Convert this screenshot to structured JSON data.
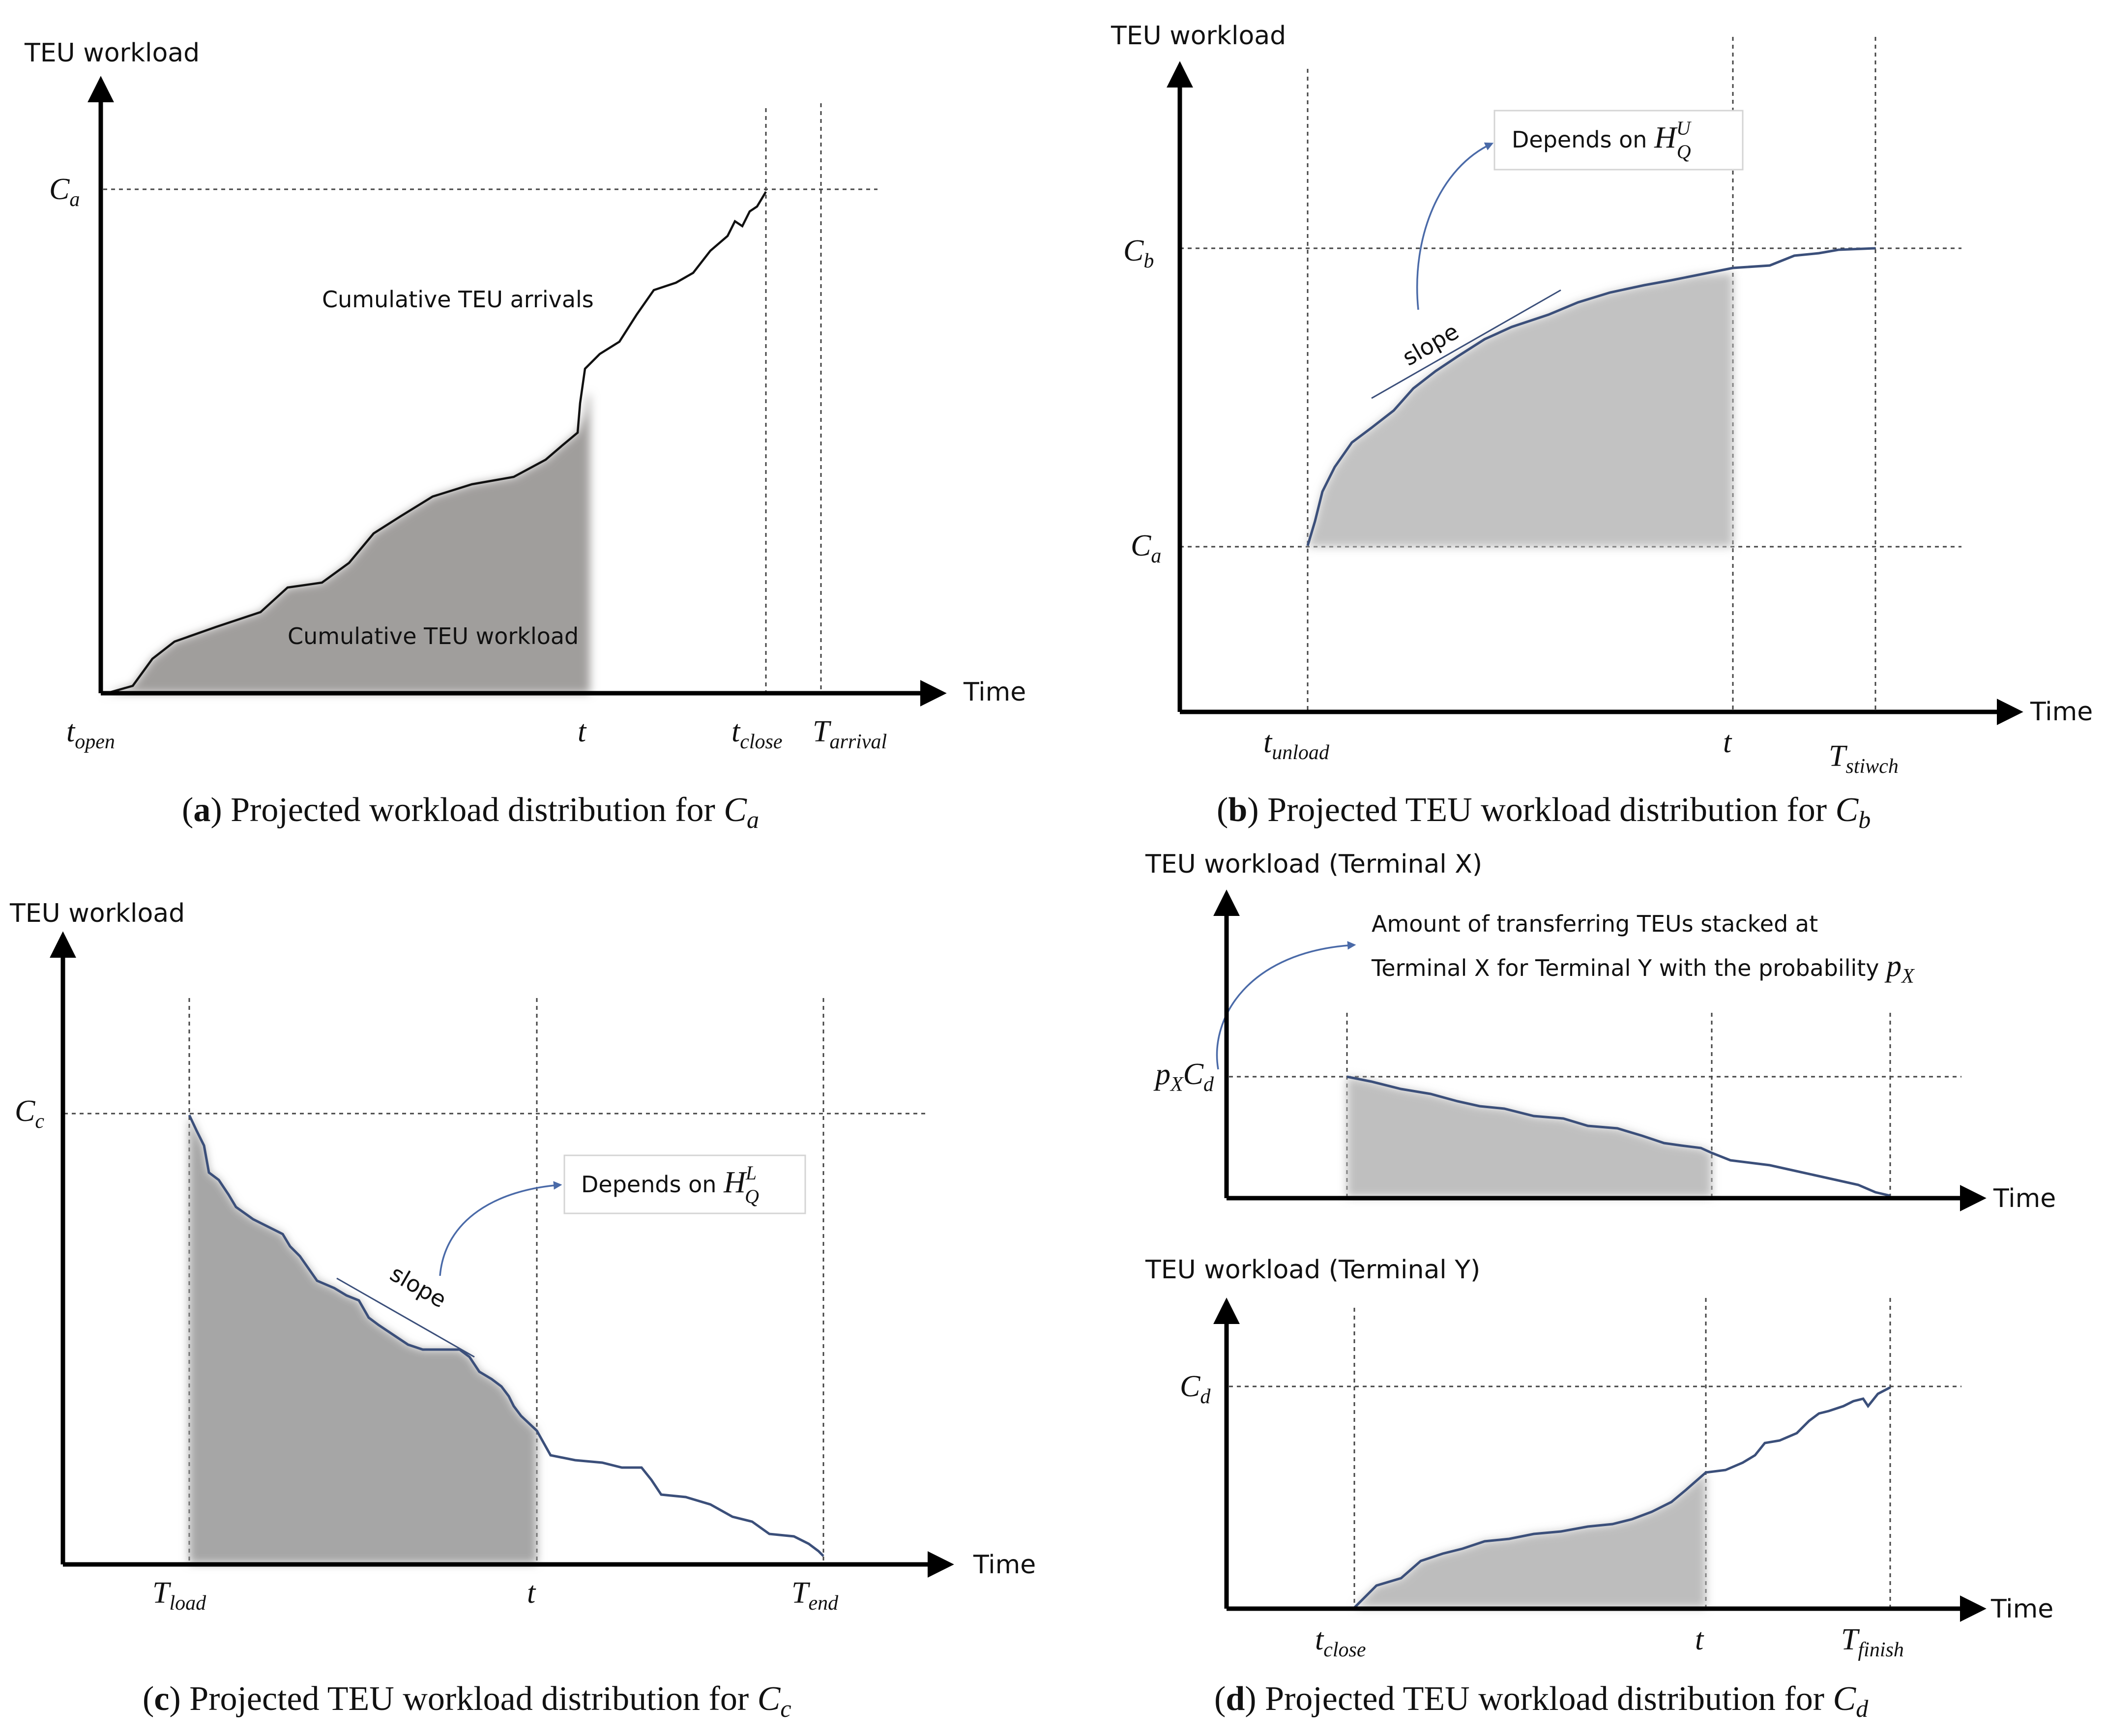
{
  "panels": {
    "a": {
      "y_axis_title": "TEU workload",
      "x_axis_title": "Time",
      "y_labels": [
        {
          "base": "C",
          "sub": "a"
        }
      ],
      "x_labels": [
        {
          "base": "t",
          "sub": "open"
        },
        {
          "base": "t",
          "sub": ""
        },
        {
          "base": "t",
          "sub": "close"
        },
        {
          "base": "T",
          "sub": "arrival"
        }
      ],
      "annotations": {
        "arrivals": "Cumulative TEU arrivals",
        "workload": "Cumulative TEU workload"
      },
      "caption": {
        "letter": "a",
        "text": " Projected workload distribution for ",
        "var_base": "C",
        "var_sub": "a"
      }
    },
    "b": {
      "y_axis_title": "TEU workload",
      "x_axis_title": "Time",
      "y_labels": [
        {
          "base": "C",
          "sub": "b"
        },
        {
          "base": "C",
          "sub": "a"
        }
      ],
      "x_labels": [
        {
          "base": "t",
          "sub": "unload"
        },
        {
          "base": "t",
          "sub": ""
        },
        {
          "base": "T",
          "sub": "stiwch"
        }
      ],
      "slope_label": "slope",
      "depends": {
        "text": "Depends on ",
        "var_base": "H",
        "var_sub": "Q",
        "var_sup": "U"
      },
      "caption": {
        "letter": "b",
        "text": " Projected TEU workload distribution for ",
        "var_base": "C",
        "var_sub": "b"
      }
    },
    "c": {
      "y_axis_title": "TEU workload",
      "x_axis_title": "Time",
      "y_labels": [
        {
          "base": "C",
          "sub": "c"
        }
      ],
      "x_labels": [
        {
          "base": "T",
          "sub": "load"
        },
        {
          "base": "t",
          "sub": ""
        },
        {
          "base": "T",
          "sub": "end"
        }
      ],
      "slope_label": "slope",
      "depends": {
        "text": "Depends on ",
        "var_base": "H",
        "var_sub": "Q",
        "var_sup": "L"
      },
      "caption": {
        "letter": "c",
        "text": " Projected TEU workload distribution for ",
        "var_base": "C",
        "var_sub": "c"
      }
    },
    "d": {
      "top_y_axis_title": "TEU workload (Terminal X)",
      "bottom_y_axis_title": "TEU workload (Terminal Y)",
      "x_axis_title": "Time",
      "top_y_label": {
        "base1": "p",
        "sub1": "X",
        "base2": "C",
        "sub2": "d"
      },
      "bottom_y_label": {
        "base": "C",
        "sub": "d"
      },
      "x_labels": [
        {
          "base": "t",
          "sub": "close"
        },
        {
          "base": "t",
          "sub": ""
        },
        {
          "base": "T",
          "sub": "finish"
        }
      ],
      "note_line1": "Amount of transferring TEUs stacked at",
      "note_line2": "Terminal X for Terminal Y with the probability ",
      "note_var": {
        "base": "p",
        "sub": "X"
      },
      "caption": {
        "letter": "d",
        "text": " Projected TEU workload distribution for ",
        "var_base": "C",
        "var_sub": "d"
      }
    }
  }
}
